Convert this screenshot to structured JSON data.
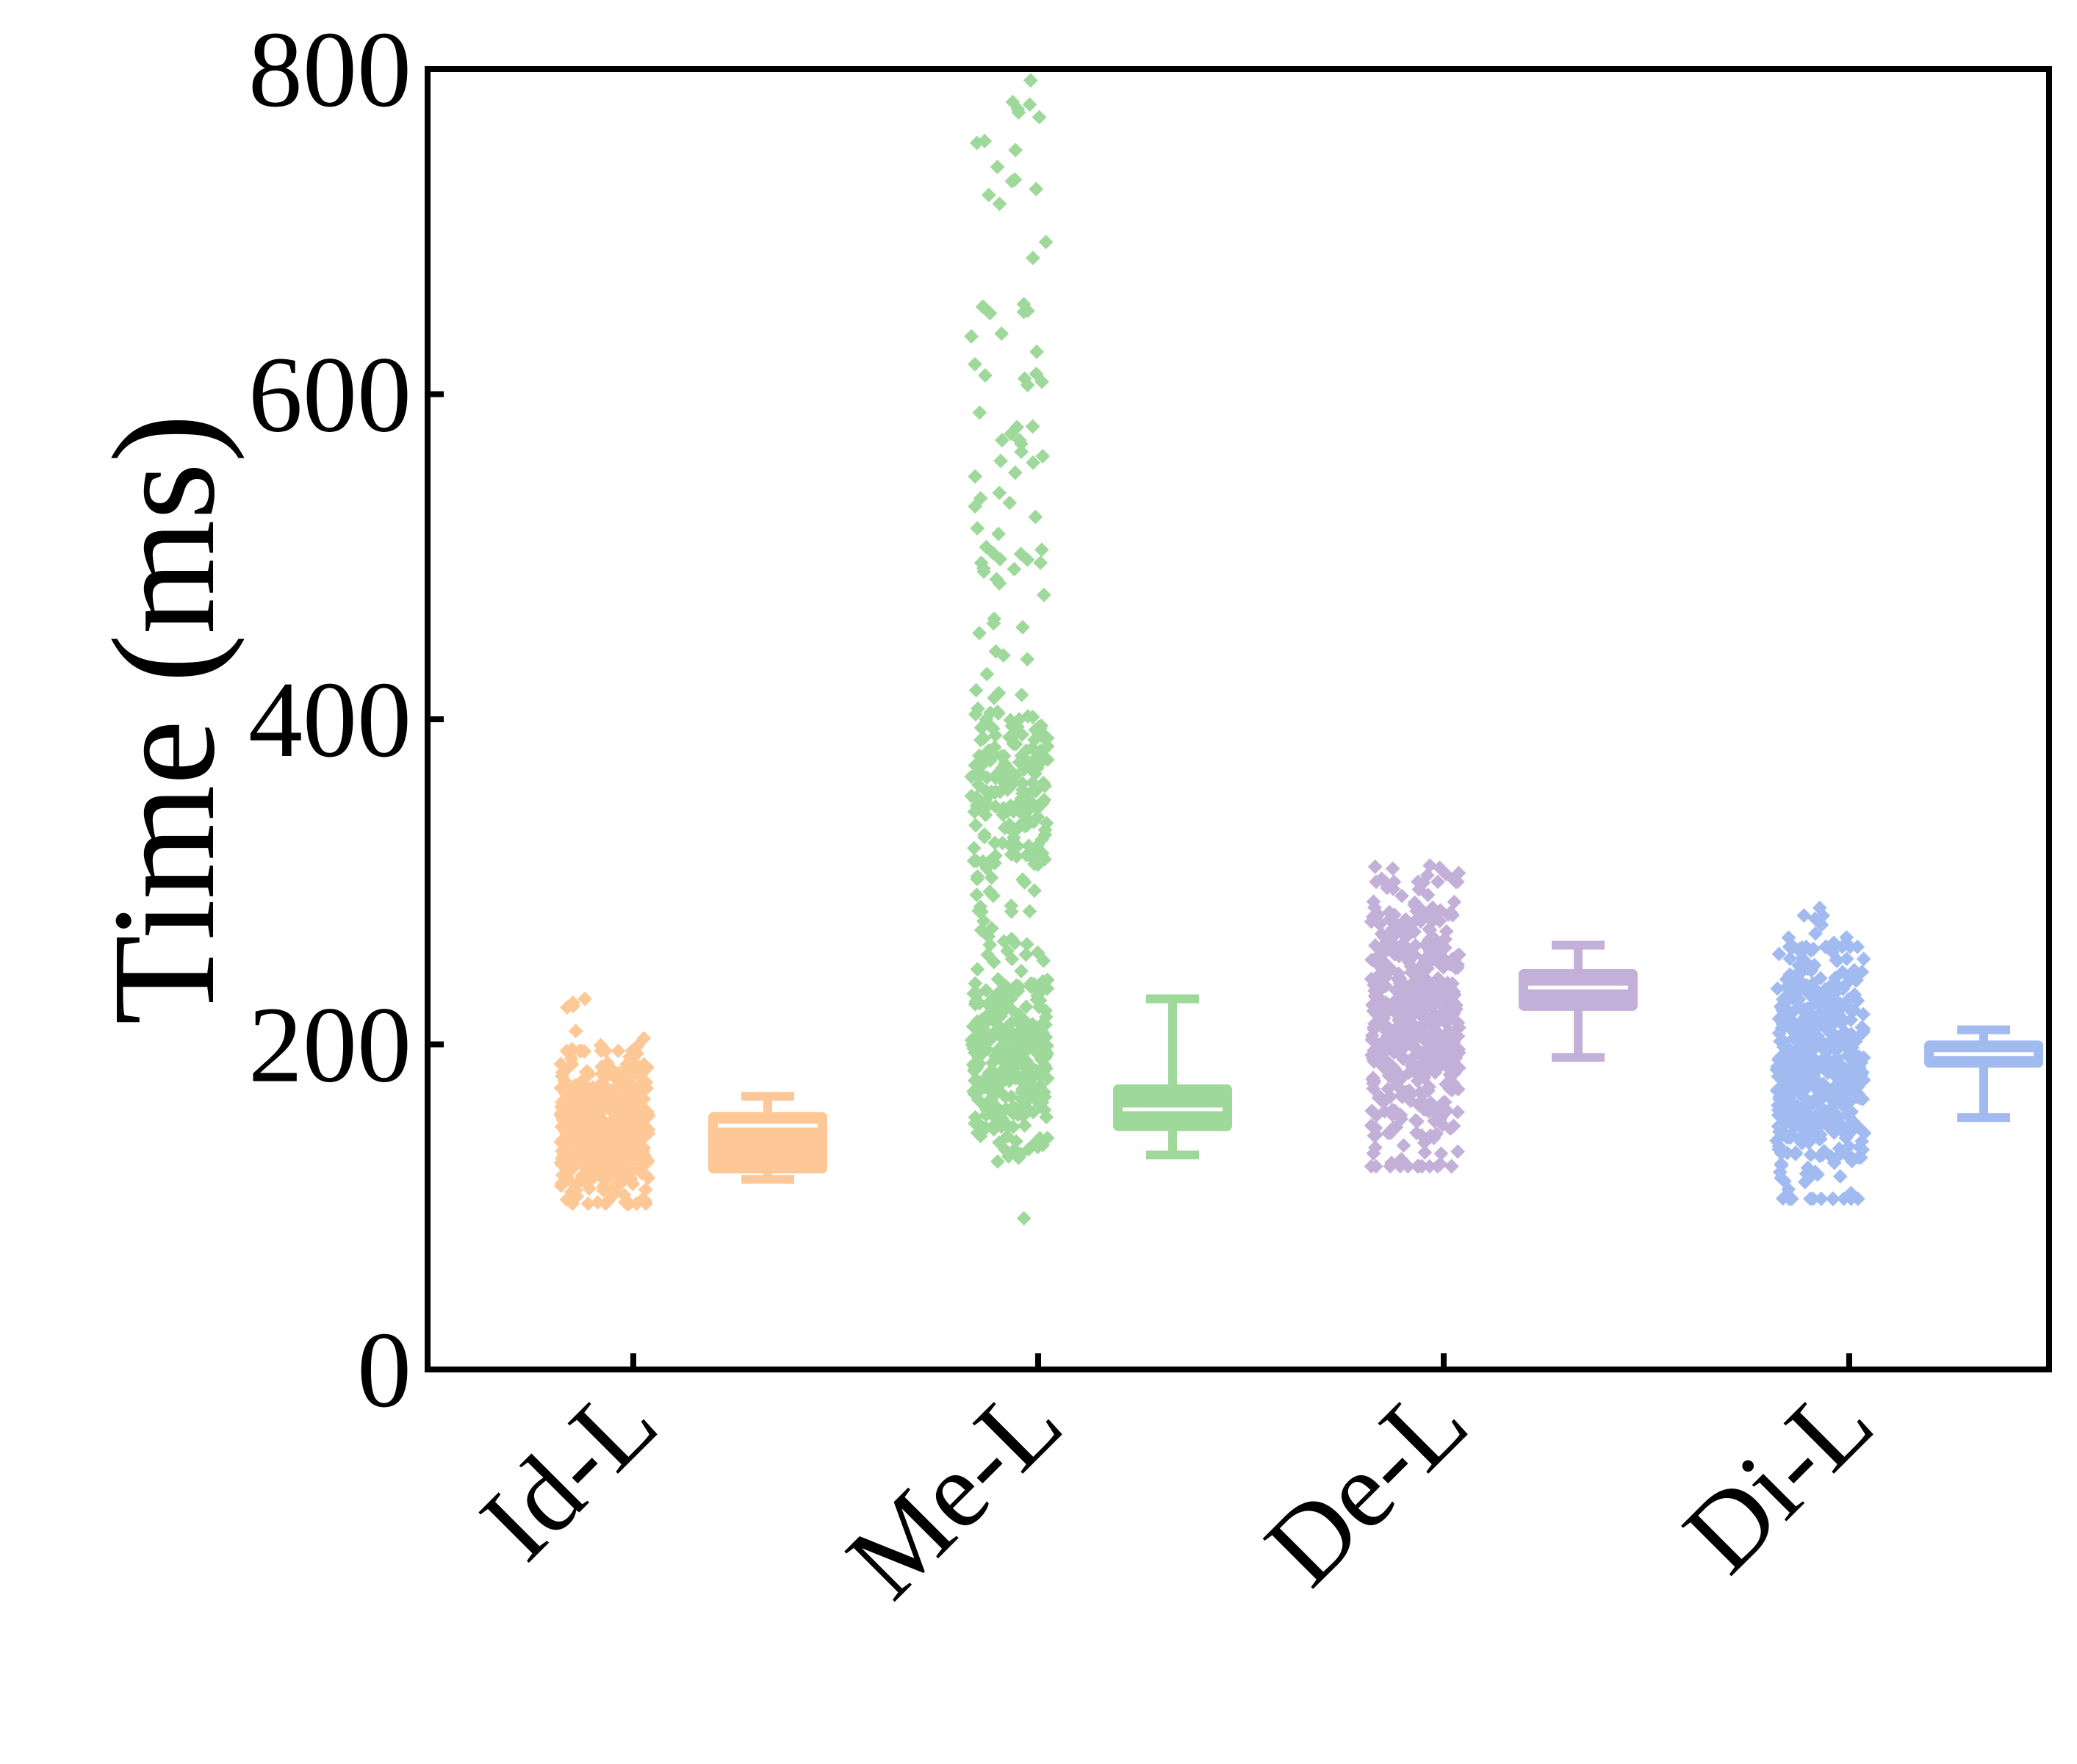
{
  "chart_data": {
    "type": "scatter",
    "subtype": "jittered strip plot with box plots",
    "ylabel": "Time (ms)",
    "xlabel": "",
    "ylim": [
      0,
      800
    ],
    "yticks": [
      0,
      200,
      400,
      600,
      800
    ],
    "categories": [
      "Id-L",
      "Me-L",
      "De-L",
      "Di-L"
    ],
    "grid": false,
    "legend": "none",
    "series": [
      {
        "category": "Id-L",
        "color": "#fdc895",
        "points_range": [
          102,
          228
        ],
        "points_main_range": [
          102,
          196
        ],
        "box": {
          "whisker_low": 117,
          "q1": 122,
          "median": 150,
          "q3": 157,
          "whisker_high": 168
        }
      },
      {
        "category": "Me-L",
        "color": "#9ed89a",
        "points_range": [
          93,
          793
        ],
        "points_main_range": [
          95,
          440
        ],
        "box": {
          "whisker_low": 132,
          "q1": 148,
          "median": 160,
          "q3": 174,
          "whisker_high": 228
        }
      },
      {
        "category": "De-L",
        "color": "#c3b0d8",
        "points_range": [
          125,
          310
        ],
        "points_main_range": [
          130,
          300
        ],
        "box": {
          "whisker_low": 192,
          "q1": 222,
          "median": 235,
          "q3": 245,
          "whisker_high": 261
        }
      },
      {
        "category": "Di-L",
        "color": "#a1baf0",
        "points_range": [
          105,
          284
        ],
        "points_main_range": [
          110,
          260
        ],
        "box": {
          "whisker_low": 155,
          "q1": 187,
          "median": 194,
          "q3": 201,
          "whisker_high": 209
        }
      }
    ]
  }
}
